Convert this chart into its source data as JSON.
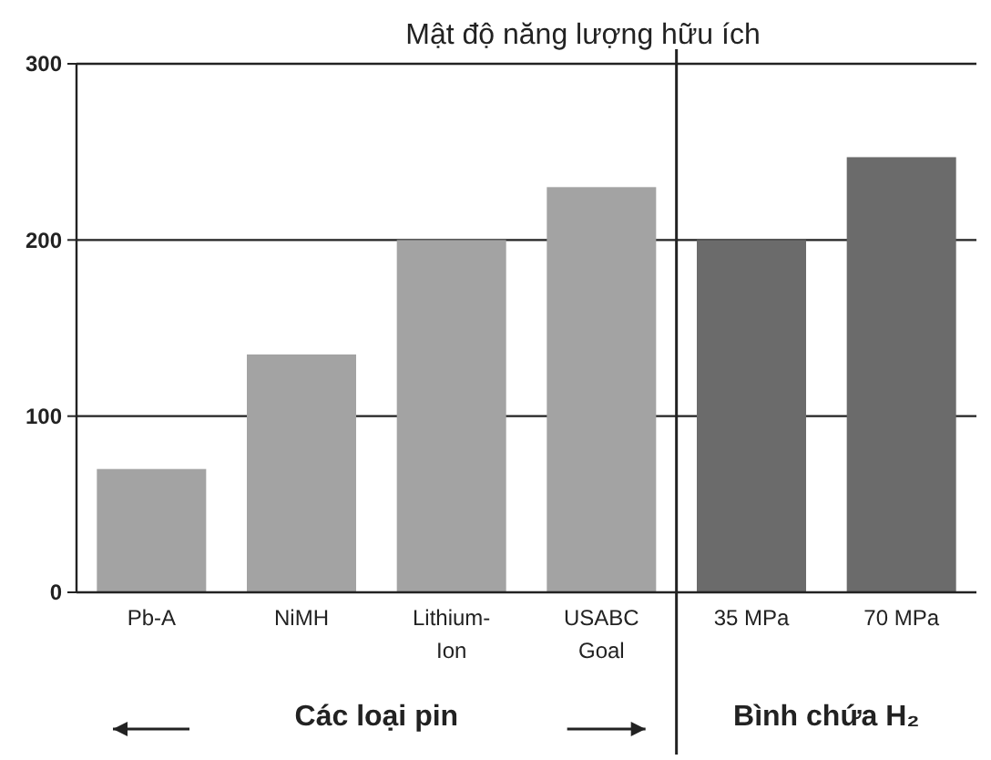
{
  "chart_data": [
    {
      "type": "bar",
      "title": "Mật độ năng lượng hữu ích",
      "categories": [
        "Pb-A",
        "NiMH",
        "Lithium-Ion",
        "USABC Goal"
      ],
      "values": [
        70,
        135,
        200,
        230
      ],
      "color": "#a3a3a3",
      "ylim": [
        0,
        300
      ],
      "yticks": [
        0,
        100,
        200,
        300
      ],
      "grid": "y",
      "annotations": [
        "Các loại pin"
      ]
    },
    {
      "type": "bar",
      "categories": [
        "35 MPa",
        "70 MPa"
      ],
      "values": [
        200,
        247
      ],
      "color": "#6b6b6b",
      "ylim": [
        0,
        300
      ],
      "yticks": [
        0,
        100,
        200,
        300
      ],
      "grid": "y",
      "tick_labels": "x",
      "annotations": [
        "Bình chứa H₂"
      ]
    }
  ]
}
